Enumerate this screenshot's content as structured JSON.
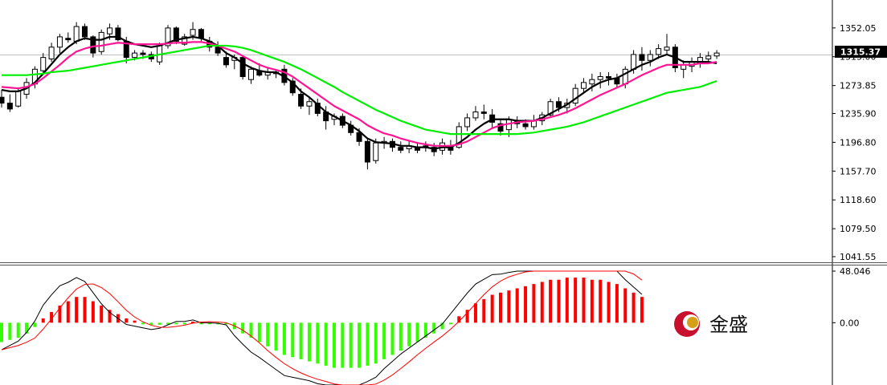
{
  "chart_data": [
    {
      "type": "candlestick",
      "title": "",
      "xlabel": "",
      "ylabel": "",
      "ylim": [
        1035,
        1390
      ],
      "yticks": [
        "1352.05",
        "1313.00",
        "1273.85",
        "1235.90",
        "1196.80",
        "1157.70",
        "1118.60",
        "1079.50",
        "1041.55"
      ],
      "current_price": "1315.37",
      "current_price_value": 1315.37,
      "grid": false,
      "ohlc": [
        [
          1258,
          1268,
          1244,
          1250
        ],
        [
          1250,
          1262,
          1238,
          1242
        ],
        [
          1246,
          1270,
          1244,
          1266
        ],
        [
          1262,
          1284,
          1256,
          1278
        ],
        [
          1276,
          1300,
          1270,
          1296
        ],
        [
          1294,
          1318,
          1288,
          1312
        ],
        [
          1310,
          1332,
          1306,
          1326
        ],
        [
          1326,
          1344,
          1318,
          1340
        ],
        [
          1338,
          1346,
          1332,
          1336
        ],
        [
          1334,
          1360,
          1330,
          1354
        ],
        [
          1354,
          1358,
          1336,
          1340
        ],
        [
          1340,
          1342,
          1312,
          1318
        ],
        [
          1320,
          1350,
          1316,
          1346
        ],
        [
          1344,
          1358,
          1336,
          1352
        ],
        [
          1352,
          1356,
          1334,
          1336
        ],
        [
          1334,
          1340,
          1304,
          1312
        ],
        [
          1312,
          1322,
          1308,
          1318
        ],
        [
          1318,
          1322,
          1310,
          1316
        ],
        [
          1316,
          1320,
          1306,
          1310
        ],
        [
          1306,
          1332,
          1302,
          1328
        ],
        [
          1328,
          1356,
          1324,
          1352
        ],
        [
          1352,
          1354,
          1330,
          1334
        ],
        [
          1330,
          1344,
          1328,
          1340
        ],
        [
          1342,
          1360,
          1336,
          1350
        ],
        [
          1350,
          1352,
          1334,
          1338
        ],
        [
          1334,
          1340,
          1320,
          1326
        ],
        [
          1326,
          1334,
          1314,
          1318
        ],
        [
          1312,
          1320,
          1298,
          1302
        ],
        [
          1308,
          1316,
          1296,
          1312
        ],
        [
          1312,
          1314,
          1282,
          1286
        ],
        [
          1282,
          1300,
          1276,
          1296
        ],
        [
          1294,
          1304,
          1286,
          1288
        ],
        [
          1288,
          1298,
          1282,
          1292
        ],
        [
          1292,
          1296,
          1284,
          1290
        ],
        [
          1296,
          1302,
          1274,
          1278
        ],
        [
          1280,
          1284,
          1260,
          1264
        ],
        [
          1262,
          1270,
          1242,
          1246
        ],
        [
          1246,
          1258,
          1234,
          1252
        ],
        [
          1250,
          1256,
          1232,
          1236
        ],
        [
          1238,
          1246,
          1214,
          1226
        ],
        [
          1228,
          1236,
          1220,
          1232
        ],
        [
          1232,
          1236,
          1216,
          1220
        ],
        [
          1220,
          1226,
          1206,
          1210
        ],
        [
          1210,
          1216,
          1192,
          1198
        ],
        [
          1198,
          1202,
          1160,
          1170
        ],
        [
          1172,
          1202,
          1168,
          1196
        ],
        [
          1196,
          1204,
          1188,
          1198
        ],
        [
          1198,
          1202,
          1184,
          1190
        ],
        [
          1190,
          1198,
          1182,
          1186
        ],
        [
          1188,
          1198,
          1182,
          1192
        ],
        [
          1190,
          1196,
          1182,
          1186
        ],
        [
          1192,
          1198,
          1184,
          1190
        ],
        [
          1190,
          1196,
          1178,
          1184
        ],
        [
          1186,
          1202,
          1180,
          1196
        ],
        [
          1192,
          1200,
          1180,
          1186
        ],
        [
          1190,
          1224,
          1188,
          1218
        ],
        [
          1218,
          1236,
          1212,
          1230
        ],
        [
          1230,
          1246,
          1226,
          1238
        ],
        [
          1238,
          1248,
          1228,
          1236
        ],
        [
          1234,
          1242,
          1216,
          1224
        ],
        [
          1222,
          1228,
          1206,
          1212
        ],
        [
          1214,
          1232,
          1204,
          1228
        ],
        [
          1226,
          1232,
          1216,
          1222
        ],
        [
          1222,
          1228,
          1214,
          1218
        ],
        [
          1218,
          1234,
          1214,
          1226
        ],
        [
          1226,
          1238,
          1220,
          1234
        ],
        [
          1234,
          1256,
          1230,
          1252
        ],
        [
          1252,
          1258,
          1238,
          1244
        ],
        [
          1244,
          1256,
          1236,
          1250
        ],
        [
          1250,
          1276,
          1246,
          1270
        ],
        [
          1270,
          1284,
          1264,
          1278
        ],
        [
          1276,
          1290,
          1266,
          1282
        ],
        [
          1282,
          1292,
          1270,
          1286
        ],
        [
          1286,
          1292,
          1274,
          1284
        ],
        [
          1284,
          1290,
          1270,
          1276
        ],
        [
          1276,
          1300,
          1270,
          1296
        ],
        [
          1296,
          1322,
          1290,
          1316
        ],
        [
          1316,
          1326,
          1294,
          1308
        ],
        [
          1308,
          1322,
          1300,
          1316
        ],
        [
          1316,
          1330,
          1310,
          1324
        ],
        [
          1322,
          1344,
          1316,
          1326
        ],
        [
          1326,
          1330,
          1292,
          1298
        ],
        [
          1296,
          1308,
          1284,
          1302
        ],
        [
          1300,
          1312,
          1292,
          1306
        ],
        [
          1304,
          1318,
          1298,
          1312
        ],
        [
          1310,
          1320,
          1304,
          1314
        ],
        [
          1314,
          1322,
          1310,
          1318
        ]
      ],
      "series": [
        {
          "color": "#000000",
          "values": [
            1268,
            1266,
            1266,
            1270,
            1278,
            1290,
            1303,
            1316,
            1326,
            1334,
            1338,
            1336,
            1336,
            1340,
            1340,
            1334,
            1330,
            1328,
            1326,
            1328,
            1332,
            1336,
            1338,
            1340,
            1338,
            1334,
            1328,
            1318,
            1312,
            1304,
            1298,
            1294,
            1292,
            1292,
            1286,
            1278,
            1266,
            1258,
            1248,
            1238,
            1232,
            1226,
            1220,
            1212,
            1202,
            1197,
            1196,
            1195,
            1192,
            1192,
            1190,
            1190,
            1188,
            1190,
            1190,
            1196,
            1204,
            1214,
            1222,
            1228,
            1228,
            1228,
            1226,
            1226,
            1226,
            1230,
            1236,
            1242,
            1248,
            1256,
            1264,
            1272,
            1278,
            1282,
            1284,
            1290,
            1296,
            1302,
            1306,
            1312,
            1316,
            1312,
            1306,
            1306,
            1306,
            1306,
            1304
          ]
        },
        {
          "color": "#ff1493",
          "values": [
            1272,
            1271,
            1270,
            1272,
            1276,
            1284,
            1293,
            1302,
            1312,
            1320,
            1324,
            1327,
            1328,
            1330,
            1332,
            1331,
            1330,
            1330,
            1330,
            1330,
            1331,
            1332,
            1332,
            1333,
            1333,
            1331,
            1328,
            1324,
            1320,
            1314,
            1308,
            1302,
            1298,
            1295,
            1292,
            1286,
            1278,
            1270,
            1262,
            1254,
            1246,
            1240,
            1234,
            1228,
            1220,
            1214,
            1209,
            1206,
            1202,
            1199,
            1196,
            1194,
            1192,
            1192,
            1192,
            1194,
            1198,
            1204,
            1210,
            1216,
            1220,
            1222,
            1224,
            1225,
            1226,
            1228,
            1231,
            1234,
            1238,
            1243,
            1249,
            1255,
            1261,
            1266,
            1271,
            1276,
            1282,
            1288,
            1293,
            1298,
            1302,
            1302,
            1302,
            1302,
            1304,
            1304,
            1306
          ]
        },
        {
          "color": "#00ee00",
          "values": [
            1288,
            1288,
            1288,
            1288,
            1289,
            1290,
            1292,
            1293,
            1294,
            1296,
            1298,
            1300,
            1302,
            1304,
            1306,
            1308,
            1310,
            1312,
            1314,
            1316,
            1318,
            1320,
            1322,
            1324,
            1326,
            1328,
            1328,
            1328,
            1327,
            1325,
            1322,
            1318,
            1314,
            1310,
            1306,
            1301,
            1296,
            1290,
            1284,
            1278,
            1272,
            1265,
            1259,
            1253,
            1247,
            1241,
            1236,
            1231,
            1226,
            1222,
            1218,
            1214,
            1212,
            1210,
            1208,
            1208,
            1208,
            1208,
            1208,
            1208,
            1208,
            1208,
            1208,
            1209,
            1210,
            1212,
            1214,
            1216,
            1218,
            1221,
            1224,
            1228,
            1232,
            1236,
            1240,
            1244,
            1248,
            1252,
            1256,
            1260,
            1264,
            1266,
            1268,
            1270,
            1272,
            1276,
            1280
          ]
        }
      ]
    },
    {
      "type": "bar",
      "title": "",
      "yticks": [
        "48.046",
        "0.00"
      ],
      "ylim": [
        -58,
        48.046
      ],
      "histogram": [
        -18,
        -16,
        -14,
        -10,
        -4,
        4,
        10,
        16,
        20,
        24,
        24,
        20,
        16,
        12,
        8,
        4,
        2,
        0,
        -2,
        -2,
        -1,
        0,
        0,
        1,
        0,
        0,
        0,
        -1,
        -6,
        -10,
        -14,
        -18,
        -22,
        -26,
        -30,
        -32,
        -34,
        -36,
        -38,
        -40,
        -42,
        -42,
        -42,
        -42,
        -40,
        -38,
        -34,
        -30,
        -26,
        -22,
        -18,
        -14,
        -10,
        -6,
        0,
        6,
        12,
        18,
        22,
        26,
        28,
        30,
        32,
        34,
        36,
        38,
        40,
        40,
        42,
        42,
        42,
        40,
        40,
        38,
        36,
        32,
        28,
        24
      ]
    }
  ],
  "logo": {
    "text": "金盛"
  }
}
